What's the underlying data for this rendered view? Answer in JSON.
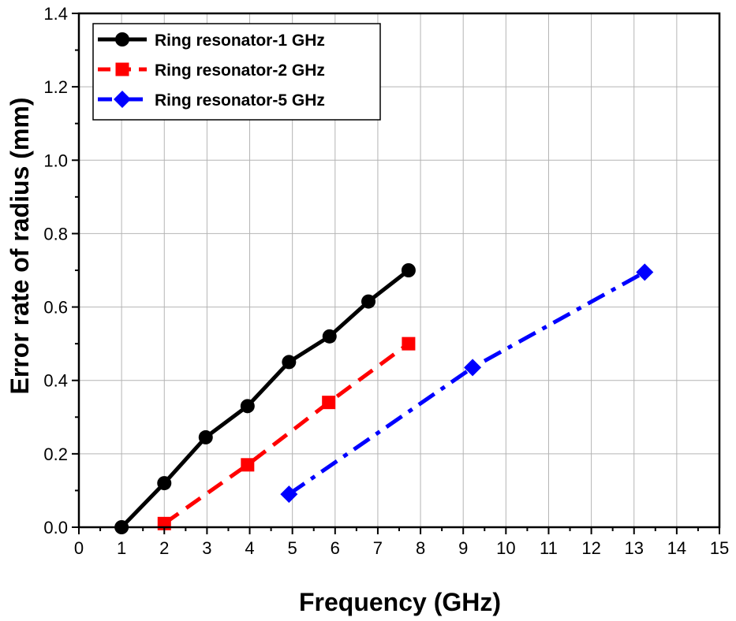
{
  "chart_data": {
    "type": "line",
    "title": "",
    "xlabel": "Frequency (GHz)",
    "ylabel": "Error rate of radius (mm)",
    "xlim": [
      0,
      15
    ],
    "ylim": [
      0,
      1.4
    ],
    "xticks": [
      0,
      1,
      2,
      3,
      4,
      5,
      6,
      7,
      8,
      9,
      10,
      11,
      12,
      13,
      14,
      15
    ],
    "yticks": [
      0.0,
      0.2,
      0.4,
      0.6,
      0.8,
      1.0,
      1.2,
      1.4
    ],
    "xtick_labels": [
      "0",
      "1",
      "2",
      "3",
      "4",
      "5",
      "6",
      "7",
      "8",
      "9",
      "10",
      "11",
      "12",
      "13",
      "14",
      "15"
    ],
    "ytick_labels": [
      "0.0",
      "0.2",
      "0.4",
      "0.6",
      "0.8",
      "1.0",
      "1.2",
      "1.4"
    ],
    "grid": true,
    "legend_position": "top-left",
    "series": [
      {
        "name": "Ring resonator-1 GHz",
        "color": "#000000",
        "line_style": "solid",
        "marker": "circle",
        "x": [
          1.0,
          2.0,
          2.97,
          3.95,
          4.92,
          5.87,
          6.78,
          7.72
        ],
        "y": [
          0.0,
          0.12,
          0.245,
          0.33,
          0.45,
          0.52,
          0.615,
          0.7
        ]
      },
      {
        "name": "Ring resonator-2 GHz",
        "color": "#ff0000",
        "line_style": "dashed",
        "marker": "square",
        "x": [
          2.0,
          3.95,
          5.85,
          7.72
        ],
        "y": [
          0.01,
          0.17,
          0.34,
          0.5
        ]
      },
      {
        "name": "Ring resonator-5 GHz",
        "color": "#0000ff",
        "line_style": "dashdot",
        "marker": "diamond",
        "x": [
          4.92,
          9.22,
          13.25
        ],
        "y": [
          0.09,
          0.435,
          0.695
        ]
      }
    ]
  }
}
